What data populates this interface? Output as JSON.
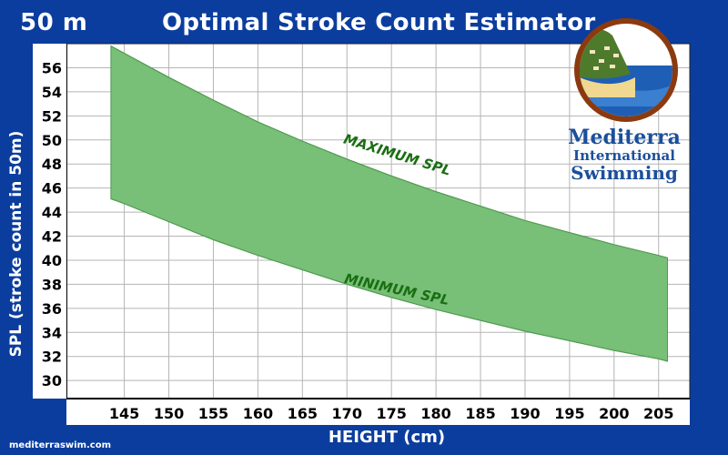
{
  "header": {
    "distance": "50 m",
    "title": "Optimal Stroke Count Estimator"
  },
  "footer": {
    "url": "mediterraswim.com"
  },
  "logo": {
    "line1": "Mediterra",
    "line2": "International",
    "line3": "Swimming",
    "colors": {
      "ring": "#8b3a0f",
      "sea": "#1e5fb5",
      "sky": "#ffffff",
      "hill": "#4e7a2b",
      "sand": "#f0d890"
    }
  },
  "colors": {
    "background": "#0b3d9e",
    "plot_area": "#ffffff",
    "band_fill": "#78bf78",
    "band_stroke": "#4e9a4e",
    "annotation": "#1a6e12",
    "grid": "#b5b5b5"
  },
  "chart_data": {
    "type": "area",
    "title": "Optimal Stroke Count Estimator",
    "xlabel": "HEIGHT (cm)",
    "ylabel": "SPL (stroke count in 50m)",
    "x_ticks": [
      145,
      150,
      155,
      160,
      165,
      170,
      175,
      180,
      185,
      190,
      195,
      200,
      205
    ],
    "y_ticks": [
      30,
      32,
      34,
      36,
      38,
      40,
      42,
      44,
      46,
      48,
      50,
      52,
      54,
      56
    ],
    "xlim": [
      138.5,
      208.5
    ],
    "ylim": [
      28.5,
      58
    ],
    "grid": true,
    "series": [
      {
        "name": "MAXIMUM SPL",
        "x": [
          143.5,
          145,
          150,
          155,
          160,
          165,
          170,
          175,
          180,
          185,
          190,
          195,
          200,
          205,
          206
        ],
        "values": [
          57.8,
          57.2,
          55.2,
          53.3,
          51.5,
          49.9,
          48.4,
          47.0,
          45.7,
          44.5,
          43.3,
          42.3,
          41.3,
          40.4,
          40.2
        ]
      },
      {
        "name": "MINIMUM SPL",
        "x": [
          143.5,
          145,
          150,
          155,
          160,
          165,
          170,
          175,
          180,
          185,
          190,
          195,
          200,
          205,
          206
        ],
        "values": [
          45.1,
          44.7,
          43.2,
          41.7,
          40.4,
          39.2,
          38.0,
          36.9,
          35.9,
          35.0,
          34.1,
          33.3,
          32.5,
          31.8,
          31.6
        ]
      }
    ],
    "annotations": [
      {
        "text": "MAXIMUM SPL",
        "x": 175.5,
        "y": 48.4,
        "angle_deg": 17
      },
      {
        "text": "MINIMUM SPL",
        "x": 175.5,
        "y": 37.2,
        "angle_deg": 12
      }
    ]
  }
}
